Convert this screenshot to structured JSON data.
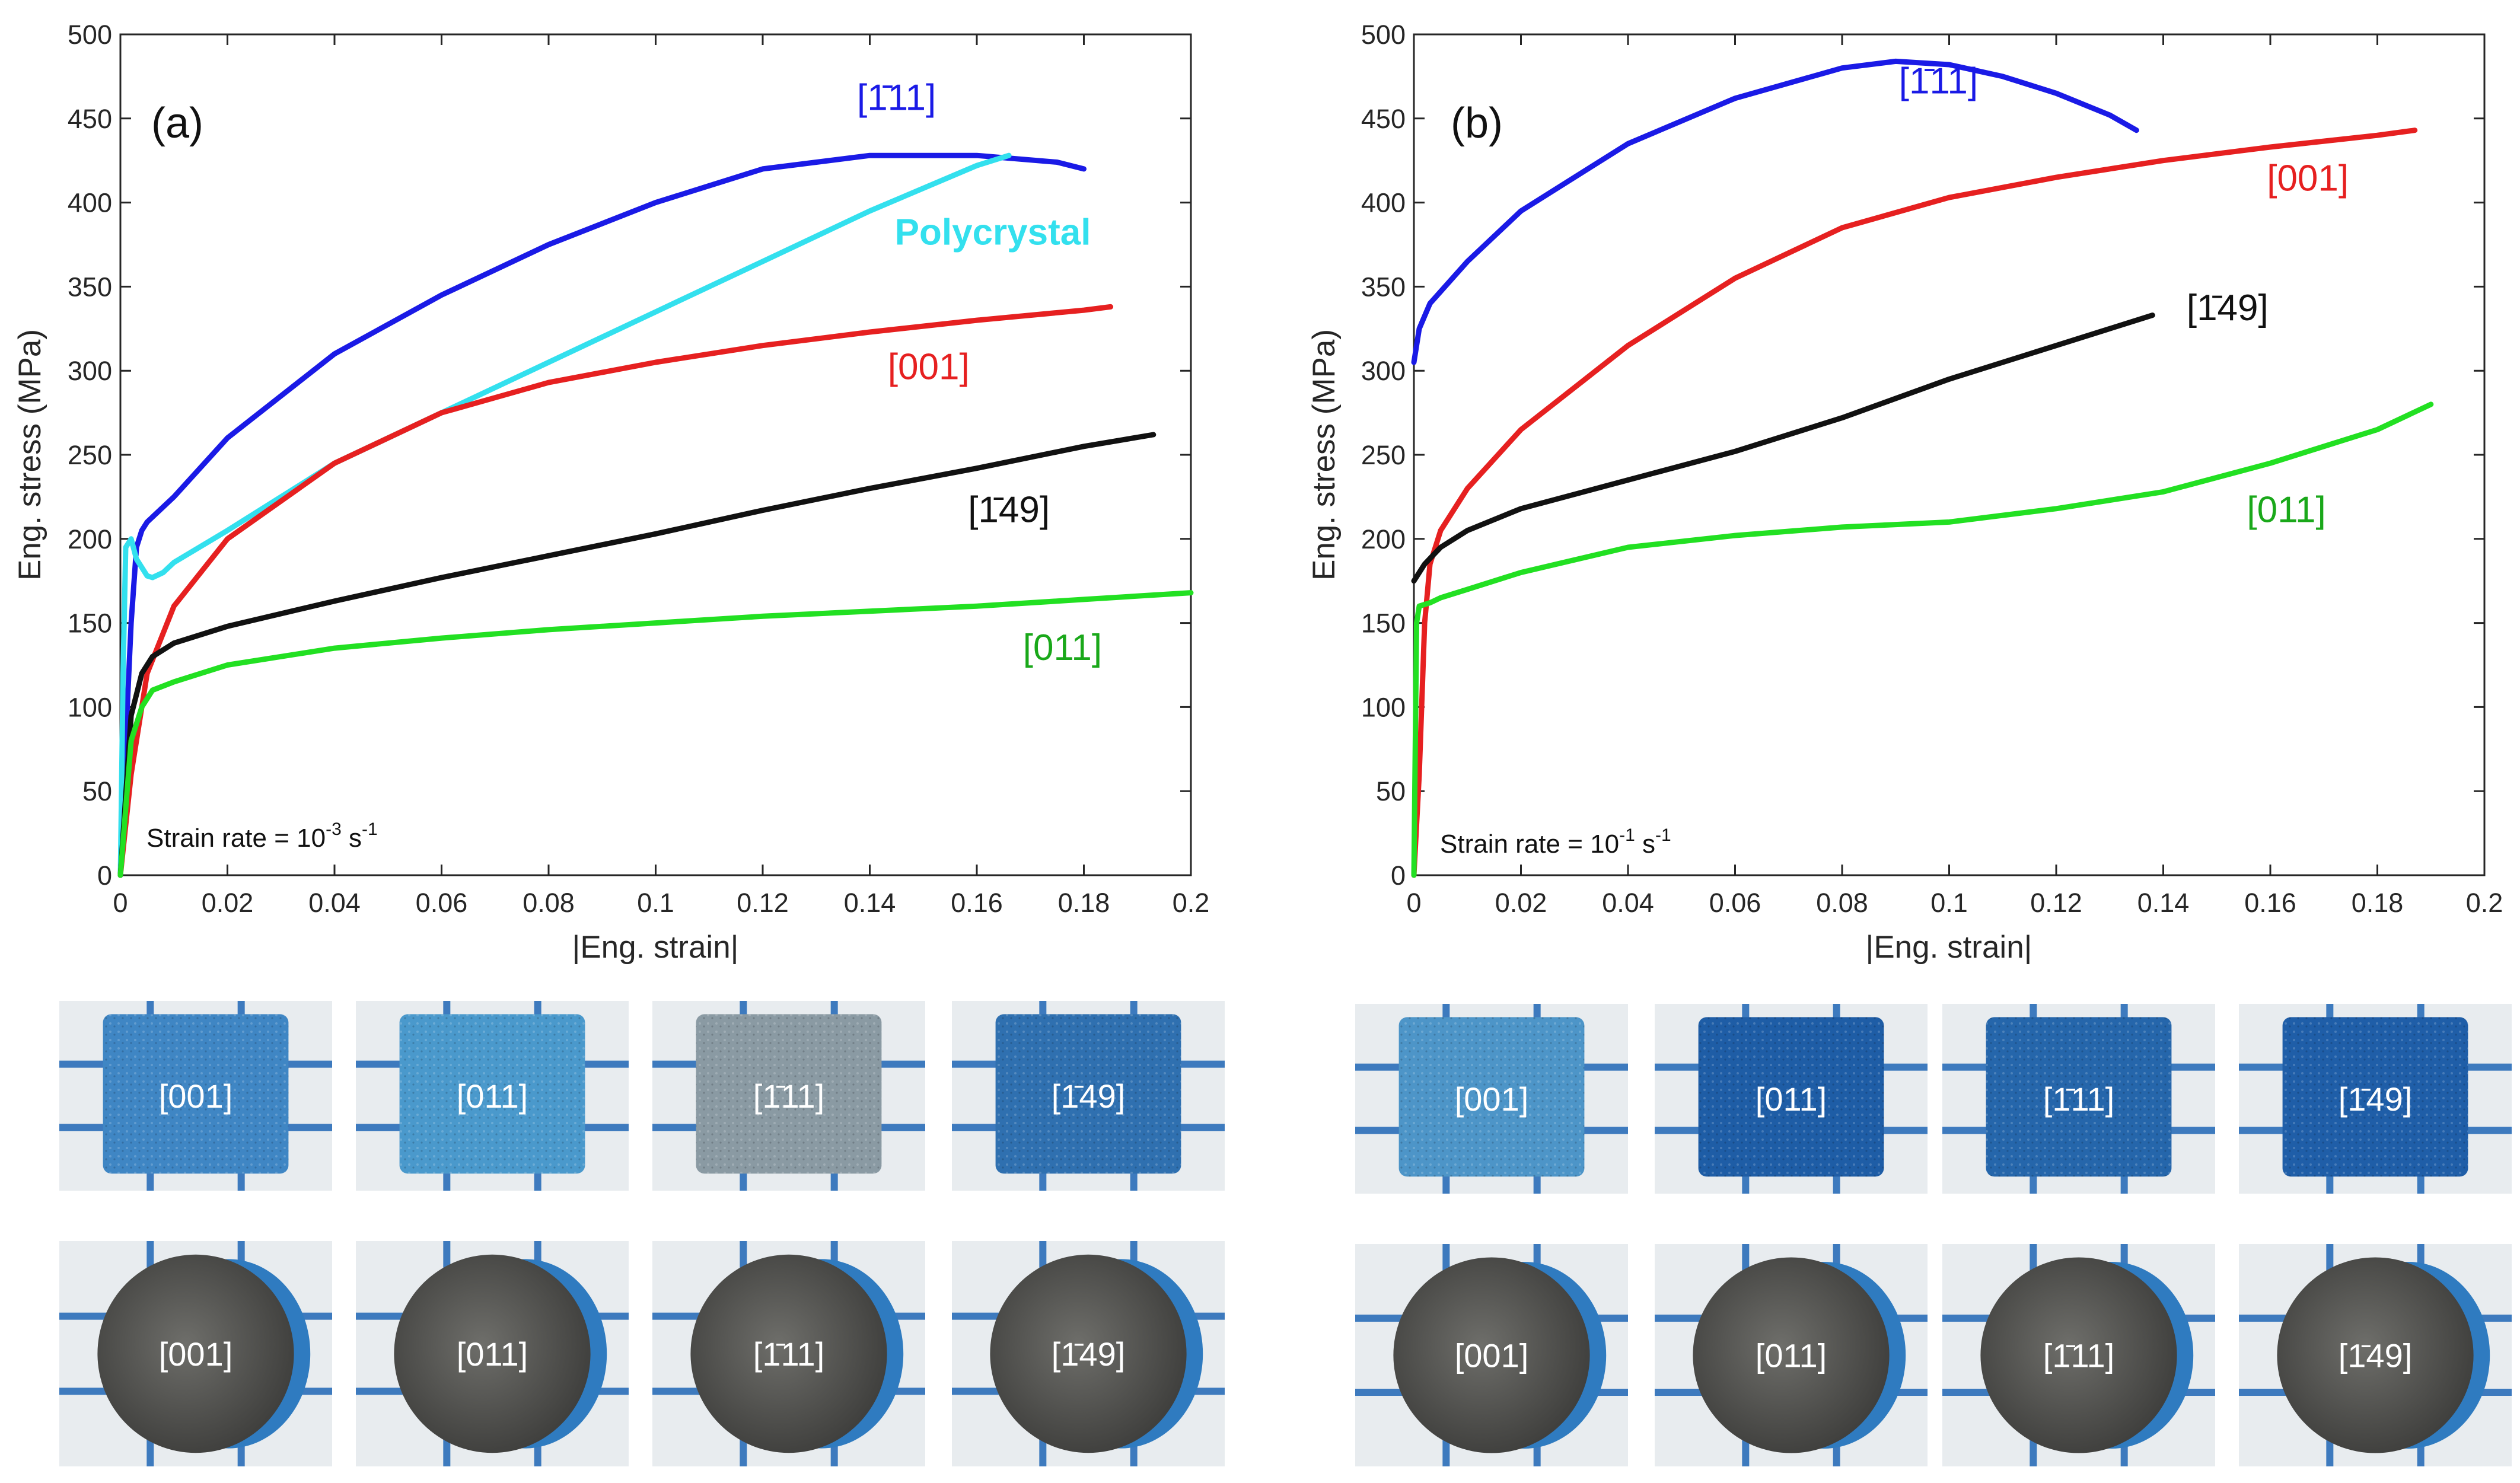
{
  "chart_data": [
    {
      "type": "line",
      "panel": "(a)",
      "xlabel": "|Eng. strain|",
      "ylabel": "Eng. stress (MPa)",
      "xlim": [
        0,
        0.2
      ],
      "ylim": [
        0,
        500
      ],
      "xticks": [
        0,
        0.02,
        0.04,
        0.06,
        0.08,
        0.1,
        0.12,
        0.14,
        0.16,
        0.18,
        0.2
      ],
      "xtick_labels": [
        "0",
        "0.02",
        "0.04",
        "0.06",
        "0.08",
        "0.1",
        "0.12",
        "0.14",
        "0.16",
        "0.18",
        "0.2"
      ],
      "yticks": [
        0,
        50,
        100,
        150,
        200,
        250,
        300,
        350,
        400,
        450,
        500
      ],
      "annotation": {
        "prefix": "Strain rate = 10",
        "exp": "-3",
        "unit": " s",
        "unit_exp": "-1"
      },
      "series": [
        {
          "name": "[111]",
          "display": "[1̄11]",
          "color": "#1a1ae6",
          "x": [
            0,
            0.001,
            0.002,
            0.003,
            0.004,
            0.005,
            0.01,
            0.02,
            0.04,
            0.06,
            0.08,
            0.1,
            0.12,
            0.14,
            0.16,
            0.175,
            0.18
          ],
          "y": [
            0,
            80,
            150,
            195,
            205,
            210,
            225,
            260,
            310,
            345,
            375,
            400,
            420,
            428,
            428,
            424,
            420
          ],
          "label_pos": [
            0.145,
            455
          ]
        },
        {
          "name": "Polycrystal",
          "display": "Polycrystal",
          "color": "#33e0ee",
          "x": [
            0,
            0.0005,
            0.001,
            0.002,
            0.003,
            0.005,
            0.006,
            0.008,
            0.01,
            0.02,
            0.04,
            0.06,
            0.08,
            0.1,
            0.12,
            0.14,
            0.16,
            0.166
          ],
          "y": [
            0,
            120,
            195,
            200,
            188,
            178,
            177,
            180,
            186,
            205,
            245,
            275,
            305,
            335,
            365,
            395,
            422,
            428
          ],
          "label_pos": [
            0.163,
            375
          ]
        },
        {
          "name": "[001]",
          "display": "[001]",
          "color": "#e62020",
          "x": [
            0,
            0.002,
            0.005,
            0.01,
            0.02,
            0.04,
            0.06,
            0.08,
            0.1,
            0.12,
            0.14,
            0.16,
            0.18,
            0.185
          ],
          "y": [
            0,
            60,
            120,
            160,
            200,
            245,
            275,
            293,
            305,
            315,
            323,
            330,
            336,
            338
          ],
          "label_pos": [
            0.151,
            295
          ]
        },
        {
          "name": "[149]",
          "display": "[1̄49]",
          "color": "#111111",
          "x": [
            0,
            0.002,
            0.004,
            0.006,
            0.01,
            0.02,
            0.04,
            0.06,
            0.08,
            0.1,
            0.12,
            0.14,
            0.16,
            0.18,
            0.193
          ],
          "y": [
            0,
            95,
            120,
            130,
            138,
            148,
            163,
            177,
            190,
            203,
            217,
            230,
            242,
            255,
            262
          ],
          "label_pos": [
            0.166,
            210
          ]
        },
        {
          "name": "[011]",
          "display": "[011]",
          "color": "#22e022",
          "x": [
            0,
            0.002,
            0.004,
            0.006,
            0.01,
            0.02,
            0.04,
            0.06,
            0.08,
            0.1,
            0.12,
            0.14,
            0.16,
            0.18,
            0.2
          ],
          "y": [
            0,
            80,
            100,
            110,
            115,
            125,
            135,
            141,
            146,
            150,
            154,
            157,
            160,
            164,
            168
          ],
          "label_pos": [
            0.176,
            128
          ]
        }
      ]
    },
    {
      "type": "line",
      "panel": "(b)",
      "xlabel": "|Eng. strain|",
      "ylabel": "Eng. stress (MPa)",
      "xlim": [
        0,
        0.2
      ],
      "ylim": [
        0,
        500
      ],
      "xticks": [
        0,
        0.02,
        0.04,
        0.06,
        0.08,
        0.1,
        0.12,
        0.14,
        0.16,
        0.18,
        0.2
      ],
      "xtick_labels": [
        "0",
        "0.02",
        "0.04",
        "0.06",
        "0.08",
        "0.1",
        "0.12",
        "0.14",
        "0.16",
        "0.18",
        "0.2"
      ],
      "yticks": [
        0,
        50,
        100,
        150,
        200,
        250,
        300,
        350,
        400,
        450,
        500
      ],
      "annotation": {
        "prefix": "Strain rate = 10",
        "exp": "-1",
        "unit": " s",
        "unit_exp": "-1"
      },
      "series": [
        {
          "name": "[111]",
          "display": "[1̄11]",
          "color": "#1a1ae6",
          "x": [
            0,
            0.0005,
            0.001,
            0.003,
            0.01,
            0.02,
            0.04,
            0.06,
            0.08,
            0.09,
            0.1,
            0.11,
            0.12,
            0.13,
            0.135
          ],
          "y": [
            305,
            315,
            325,
            340,
            365,
            395,
            435,
            462,
            480,
            484,
            482,
            475,
            465,
            452,
            443
          ],
          "label_pos": [
            0.098,
            465
          ]
        },
        {
          "name": "[001]",
          "display": "[001]",
          "color": "#e62020",
          "x": [
            0,
            0.001,
            0.002,
            0.003,
            0.005,
            0.01,
            0.02,
            0.04,
            0.06,
            0.08,
            0.1,
            0.12,
            0.14,
            0.16,
            0.18,
            0.187
          ],
          "y": [
            0,
            60,
            150,
            185,
            205,
            230,
            265,
            315,
            355,
            385,
            403,
            415,
            425,
            433,
            440,
            443
          ],
          "label_pos": [
            0.167,
            407
          ]
        },
        {
          "name": "[149]",
          "display": "[1̄49]",
          "color": "#111111",
          "x": [
            0,
            0.002,
            0.005,
            0.01,
            0.02,
            0.04,
            0.06,
            0.08,
            0.1,
            0.12,
            0.138
          ],
          "y": [
            175,
            185,
            195,
            205,
            218,
            235,
            252,
            272,
            295,
            315,
            333
          ],
          "label_pos": [
            0.152,
            330
          ]
        },
        {
          "name": "[011]",
          "display": "[011]",
          "color": "#22e022",
          "x": [
            0,
            0.0005,
            0.001,
            0.003,
            0.005,
            0.01,
            0.02,
            0.04,
            0.06,
            0.08,
            0.1,
            0.12,
            0.14,
            0.16,
            0.18,
            0.19
          ],
          "y": [
            0,
            150,
            160,
            162,
            165,
            170,
            180,
            195,
            202,
            207,
            210,
            218,
            228,
            245,
            265,
            280
          ],
          "label_pos": [
            0.163,
            210
          ]
        }
      ]
    }
  ],
  "photos": {
    "a_side": [
      "[001]",
      "[011]",
      "[1̄11]",
      "[1̄49]"
    ],
    "a_top": [
      "[001]",
      "[011]",
      "[1̄11]",
      "[1̄49]"
    ],
    "b_side": [
      "[001]",
      "[011]",
      "[1̄11]",
      "[1̄49]"
    ],
    "b_top": [
      "[001]",
      "[011]",
      "[1̄11]",
      "[1̄49]"
    ],
    "side_colors": [
      "#3f86c4",
      "#4a99cc",
      "#8a9aa3",
      "#2f70b0"
    ],
    "side_colors_b": [
      "#4d95c8",
      "#1e5da6",
      "#2566ab",
      "#1f5ea8"
    ]
  }
}
